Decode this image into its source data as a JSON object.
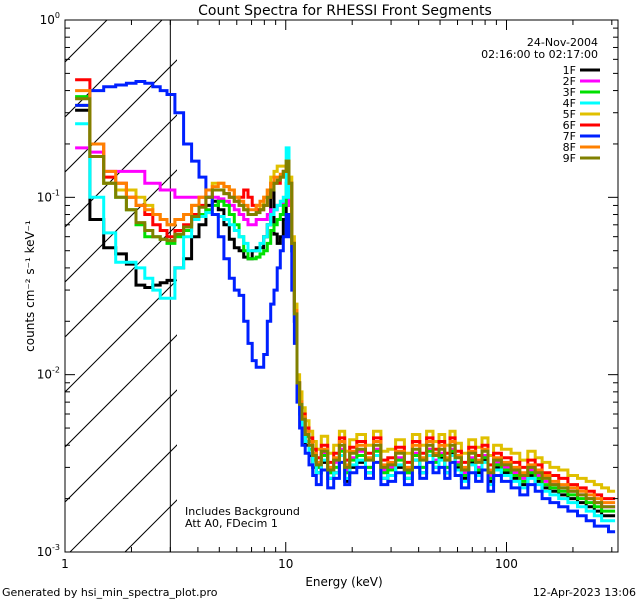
{
  "chart_data": {
    "type": "line",
    "title": "Count Spectra for RHESSI Front Segments",
    "xlabel": "Energy (keV)",
    "ylabel": "counts cm⁻² s⁻¹ keV⁻¹",
    "xscale": "log",
    "yscale": "log",
    "xlim": [
      1,
      320
    ],
    "ylim": [
      0.001,
      1
    ],
    "x_ticks": [
      {
        "value": 1,
        "label": "1"
      },
      {
        "value": 10,
        "label": "10"
      },
      {
        "value": 100,
        "label": "100"
      }
    ],
    "y_ticks": [
      {
        "value": 1,
        "base": "10",
        "exp": "0"
      },
      {
        "value": 0.1,
        "base": "10",
        "exp": "-1"
      },
      {
        "value": 0.01,
        "base": "10",
        "exp": "-2"
      },
      {
        "value": 0.001,
        "base": "10",
        "exp": "-3"
      }
    ],
    "date": "24-Nov-2004",
    "time_range": "02:16:00 to 02:17:00",
    "attenuator_cutoff_keV": 3,
    "annotations": [
      "Includes Background",
      "Att A0, FDecim 1"
    ],
    "footer_left": "Generated by hsi_min_spectra_plot.pro",
    "footer_right": "12-Apr-2023 13:06",
    "energy_bins": [
      1.2,
      1.4,
      1.6,
      1.8,
      2.0,
      2.2,
      2.4,
      2.6,
      2.8,
      3.0,
      3.3,
      3.6,
      3.9,
      4.2,
      4.5,
      4.8,
      5.1,
      5.4,
      5.7,
      6.0,
      6.3,
      6.6,
      6.9,
      7.2,
      7.5,
      7.8,
      8.1,
      8.4,
      8.7,
      9.0,
      9.3,
      9.6,
      9.9,
      10.2,
      10.5,
      10.8,
      11.1,
      11.4,
      11.7,
      12.0,
      12.5,
      13,
      13.5,
      14,
      15,
      16,
      17,
      18,
      19,
      20,
      22,
      24,
      26,
      28,
      30,
      33,
      36,
      39,
      42,
      45,
      48,
      51,
      54,
      57,
      60,
      65,
      70,
      75,
      80,
      85,
      90,
      100,
      110,
      120,
      130,
      140,
      150,
      165,
      180,
      200,
      220,
      240,
      260,
      280,
      300
    ],
    "series": [
      {
        "name": "1F",
        "color": "#000000",
        "values": [
          0.31,
          0.075,
          0.052,
          0.048,
          0.042,
          0.032,
          0.031,
          0.032,
          0.033,
          0.034,
          0.04,
          0.045,
          0.06,
          0.07,
          0.09,
          0.095,
          0.085,
          0.07,
          0.058,
          0.052,
          0.05,
          0.046,
          0.045,
          0.05,
          0.052,
          0.052,
          0.06,
          0.07,
          0.12,
          0.062,
          0.055,
          0.06,
          0.075,
          0.1,
          0.09,
          0.05,
          0.02,
          0.008,
          0.006,
          0.005,
          0.004,
          0.0035,
          0.003,
          0.0028,
          0.0032,
          0.0026,
          0.0028,
          0.0035,
          0.0025,
          0.003,
          0.0032,
          0.0028,
          0.0035,
          0.0026,
          0.0027,
          0.003,
          0.0026,
          0.0033,
          0.0028,
          0.0035,
          0.003,
          0.0034,
          0.0028,
          0.0036,
          0.003,
          0.0026,
          0.0032,
          0.0028,
          0.0033,
          0.0025,
          0.003,
          0.0028,
          0.0026,
          0.0024,
          0.0027,
          0.0025,
          0.0023,
          0.0022,
          0.0021,
          0.002,
          0.0019,
          0.0018,
          0.0017,
          0.0016,
          0.0016
        ]
      },
      {
        "name": "2F",
        "color": "#ff00ff",
        "values": [
          0.19,
          0.18,
          0.14,
          0.14,
          0.14,
          0.14,
          0.12,
          0.12,
          0.11,
          0.11,
          0.1,
          0.1,
          0.1,
          0.1,
          0.1,
          0.1,
          0.098,
          0.095,
          0.09,
          0.085,
          0.08,
          0.075,
          0.07,
          0.07,
          0.075,
          0.075,
          0.075,
          0.08,
          0.085,
          0.085,
          0.09,
          0.09,
          0.095,
          0.1,
          0.09,
          0.05,
          0.02,
          0.008,
          0.006,
          0.005,
          0.0045,
          0.004,
          0.0035,
          0.003,
          0.0036,
          0.0028,
          0.0032,
          0.0038,
          0.0029,
          0.0034,
          0.0037,
          0.003,
          0.0038,
          0.0029,
          0.003,
          0.0034,
          0.0028,
          0.0036,
          0.003,
          0.0038,
          0.0033,
          0.0036,
          0.003,
          0.0038,
          0.0032,
          0.0028,
          0.0034,
          0.003,
          0.0035,
          0.0027,
          0.0032,
          0.003,
          0.0028,
          0.0026,
          0.0029,
          0.0027,
          0.0025,
          0.0024,
          0.0023,
          0.0022,
          0.0021,
          0.002,
          0.0019,
          0.0018,
          0.0018
        ]
      },
      {
        "name": "3F",
        "color": "#00e000",
        "values": [
          0.37,
          0.17,
          0.12,
          0.1,
          0.085,
          0.07,
          0.06,
          0.06,
          0.058,
          0.055,
          0.06,
          0.065,
          0.075,
          0.08,
          0.085,
          0.09,
          0.095,
          0.09,
          0.08,
          0.07,
          0.06,
          0.05,
          0.045,
          0.045,
          0.046,
          0.048,
          0.05,
          0.055,
          0.065,
          0.07,
          0.075,
          0.08,
          0.09,
          0.12,
          0.1,
          0.05,
          0.022,
          0.009,
          0.007,
          0.0055,
          0.0045,
          0.0038,
          0.0033,
          0.003,
          0.0035,
          0.0028,
          0.003,
          0.0037,
          0.0028,
          0.0033,
          0.0035,
          0.003,
          0.0037,
          0.0028,
          0.0029,
          0.0033,
          0.0028,
          0.0035,
          0.003,
          0.0037,
          0.0032,
          0.0035,
          0.003,
          0.0037,
          0.0031,
          0.0027,
          0.0033,
          0.0029,
          0.0034,
          0.0026,
          0.0031,
          0.0029,
          0.0027,
          0.0025,
          0.0028,
          0.0026,
          0.0024,
          0.0023,
          0.0022,
          0.0021,
          0.002,
          0.0019,
          0.0018,
          0.0017,
          0.0017
        ]
      },
      {
        "name": "4F",
        "color": "#00ffff",
        "values": [
          0.26,
          0.1,
          0.063,
          0.043,
          0.043,
          0.04,
          0.035,
          0.03,
          0.027,
          0.027,
          0.04,
          0.06,
          0.075,
          0.078,
          0.082,
          0.08,
          0.078,
          0.075,
          0.07,
          0.065,
          0.06,
          0.055,
          0.05,
          0.05,
          0.05,
          0.055,
          0.06,
          0.07,
          0.08,
          0.085,
          0.09,
          0.095,
          0.1,
          0.19,
          0.1,
          0.05,
          0.02,
          0.008,
          0.006,
          0.005,
          0.0042,
          0.0036,
          0.0031,
          0.0028,
          0.0033,
          0.0026,
          0.0028,
          0.0035,
          0.0026,
          0.0031,
          0.0033,
          0.0028,
          0.0035,
          0.0026,
          0.0027,
          0.0031,
          0.0026,
          0.0033,
          0.0028,
          0.0035,
          0.003,
          0.0033,
          0.0028,
          0.0035,
          0.0029,
          0.0025,
          0.0031,
          0.0027,
          0.0032,
          0.0024,
          0.0029,
          0.0027,
          0.0025,
          0.0023,
          0.0026,
          0.0024,
          0.0022,
          0.0021,
          0.002,
          0.0019,
          0.0018,
          0.0017,
          0.0016,
          0.0015,
          0.0015
        ]
      },
      {
        "name": "5F",
        "color": "#e0c000",
        "values": [
          0.33,
          0.17,
          0.12,
          0.11,
          0.11,
          0.1,
          0.09,
          0.08,
          0.075,
          0.07,
          0.075,
          0.08,
          0.09,
          0.1,
          0.11,
          0.12,
          0.12,
          0.115,
          0.11,
          0.1,
          0.09,
          0.085,
          0.08,
          0.08,
          0.085,
          0.09,
          0.1,
          0.11,
          0.13,
          0.14,
          0.15,
          0.15,
          0.15,
          0.16,
          0.13,
          0.06,
          0.025,
          0.01,
          0.008,
          0.0065,
          0.0055,
          0.0048,
          0.0042,
          0.0038,
          0.0045,
          0.0036,
          0.004,
          0.0048,
          0.0037,
          0.0043,
          0.0046,
          0.004,
          0.0048,
          0.0037,
          0.0038,
          0.0043,
          0.0036,
          0.0046,
          0.004,
          0.0048,
          0.0042,
          0.0046,
          0.004,
          0.0048,
          0.0041,
          0.0036,
          0.0043,
          0.0039,
          0.0044,
          0.0035,
          0.004,
          0.0038,
          0.0036,
          0.0033,
          0.0037,
          0.0034,
          0.0032,
          0.003,
          0.0029,
          0.0027,
          0.0026,
          0.0025,
          0.0024,
          0.0023,
          0.0022
        ]
      },
      {
        "name": "6F",
        "color": "#ff0000",
        "values": [
          0.46,
          0.2,
          0.13,
          0.12,
          0.1,
          0.09,
          0.08,
          0.07,
          0.065,
          0.06,
          0.065,
          0.07,
          0.08,
          0.09,
          0.1,
          0.11,
          0.11,
          0.105,
          0.1,
          0.095,
          0.1,
          0.11,
          0.1,
          0.09,
          0.085,
          0.085,
          0.09,
          0.1,
          0.11,
          0.12,
          0.12,
          0.13,
          0.14,
          0.15,
          0.12,
          0.055,
          0.023,
          0.009,
          0.007,
          0.006,
          0.005,
          0.0044,
          0.0038,
          0.0034,
          0.004,
          0.0032,
          0.0036,
          0.0044,
          0.0033,
          0.0039,
          0.0042,
          0.0036,
          0.0044,
          0.0033,
          0.0034,
          0.0039,
          0.0032,
          0.0042,
          0.0036,
          0.0044,
          0.0038,
          0.0042,
          0.0036,
          0.0044,
          0.0037,
          0.0032,
          0.0039,
          0.0035,
          0.004,
          0.0031,
          0.0036,
          0.0034,
          0.0032,
          0.003,
          0.0033,
          0.0031,
          0.0028,
          0.0027,
          0.0026,
          0.0024,
          0.0023,
          0.0022,
          0.0021,
          0.002,
          0.002
        ]
      },
      {
        "name": "7F",
        "color": "#0020ff",
        "values": [
          0.33,
          0.4,
          0.42,
          0.43,
          0.44,
          0.45,
          0.44,
          0.42,
          0.4,
          0.38,
          0.3,
          0.2,
          0.16,
          0.13,
          0.1,
          0.08,
          0.06,
          0.045,
          0.035,
          0.03,
          0.028,
          0.02,
          0.015,
          0.012,
          0.011,
          0.011,
          0.013,
          0.02,
          0.025,
          0.03,
          0.04,
          0.05,
          0.06,
          0.08,
          0.06,
          0.03,
          0.015,
          0.007,
          0.005,
          0.004,
          0.0036,
          0.0031,
          0.0027,
          0.0024,
          0.0029,
          0.0023,
          0.0026,
          0.0032,
          0.0024,
          0.0028,
          0.003,
          0.0026,
          0.0032,
          0.0024,
          0.0025,
          0.0028,
          0.0024,
          0.003,
          0.0026,
          0.0032,
          0.0028,
          0.003,
          0.0026,
          0.0032,
          0.0027,
          0.0023,
          0.0028,
          0.0025,
          0.0029,
          0.0022,
          0.0027,
          0.0025,
          0.0023,
          0.0021,
          0.0024,
          0.0022,
          0.002,
          0.0019,
          0.0018,
          0.0017,
          0.0016,
          0.0015,
          0.0014,
          0.0014,
          0.0013
        ]
      },
      {
        "name": "8F",
        "color": "#ff8000",
        "values": [
          0.4,
          0.2,
          0.14,
          0.12,
          0.1,
          0.09,
          0.085,
          0.08,
          0.075,
          0.07,
          0.075,
          0.08,
          0.09,
          0.1,
          0.11,
          0.115,
          0.12,
          0.115,
          0.11,
          0.1,
          0.095,
          0.09,
          0.085,
          0.085,
          0.09,
          0.095,
          0.1,
          0.11,
          0.12,
          0.13,
          0.13,
          0.135,
          0.14,
          0.15,
          0.12,
          0.055,
          0.023,
          0.009,
          0.007,
          0.0058,
          0.0048,
          0.0042,
          0.0036,
          0.0032,
          0.0038,
          0.003,
          0.0034,
          0.0042,
          0.0031,
          0.0037,
          0.004,
          0.0034,
          0.0042,
          0.0031,
          0.0032,
          0.0037,
          0.003,
          0.004,
          0.0034,
          0.0042,
          0.0036,
          0.004,
          0.0034,
          0.0042,
          0.0035,
          0.003,
          0.0037,
          0.0033,
          0.0038,
          0.0029,
          0.0034,
          0.0032,
          0.003,
          0.0028,
          0.0031,
          0.0029,
          0.0027,
          0.0025,
          0.0024,
          0.0023,
          0.0022,
          0.0021,
          0.002,
          0.0019,
          0.0019
        ]
      },
      {
        "name": "9F",
        "color": "#808000",
        "values": [
          0.36,
          0.17,
          0.12,
          0.1,
          0.085,
          0.072,
          0.065,
          0.06,
          0.058,
          0.057,
          0.062,
          0.068,
          0.078,
          0.088,
          0.1,
          0.11,
          0.11,
          0.105,
          0.1,
          0.095,
          0.09,
          0.085,
          0.08,
          0.08,
          0.082,
          0.085,
          0.09,
          0.1,
          0.11,
          0.12,
          0.125,
          0.13,
          0.14,
          0.16,
          0.12,
          0.055,
          0.022,
          0.009,
          0.0068,
          0.0056,
          0.0046,
          0.004,
          0.0035,
          0.0031,
          0.0037,
          0.0029,
          0.0033,
          0.004,
          0.003,
          0.0036,
          0.0038,
          0.0033,
          0.004,
          0.003,
          0.0031,
          0.0036,
          0.0029,
          0.0038,
          0.0033,
          0.004,
          0.0035,
          0.0038,
          0.0033,
          0.004,
          0.0034,
          0.0029,
          0.0036,
          0.0032,
          0.0037,
          0.0028,
          0.0033,
          0.0031,
          0.0029,
          0.0027,
          0.003,
          0.0028,
          0.0026,
          0.0024,
          0.0023,
          0.0022,
          0.0021,
          0.002,
          0.0019,
          0.0018,
          0.0018
        ]
      }
    ]
  }
}
